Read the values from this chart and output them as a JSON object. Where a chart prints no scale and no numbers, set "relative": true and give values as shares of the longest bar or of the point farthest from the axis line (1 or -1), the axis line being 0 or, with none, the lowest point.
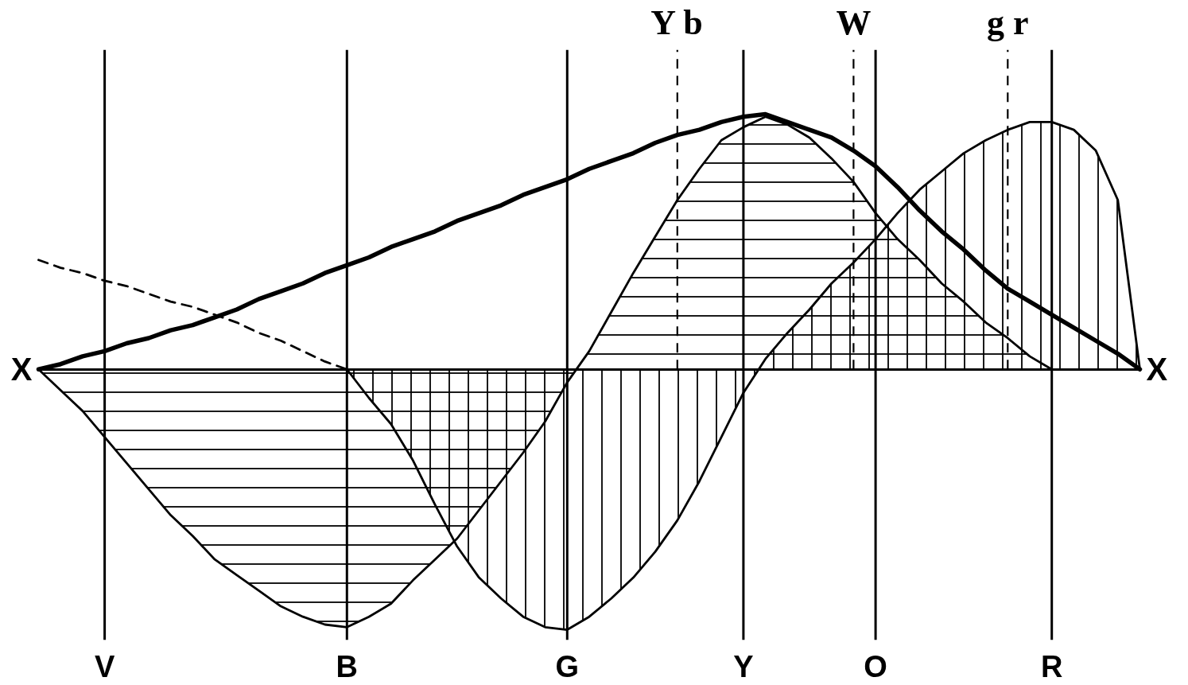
{
  "chart_data": {
    "type": "line",
    "relative": true,
    "categories": [
      null,
      null,
      null,
      "V",
      null,
      null,
      null,
      null,
      null,
      null,
      null,
      null,
      null,
      null,
      "B",
      null,
      null,
      null,
      null,
      null,
      null,
      null,
      null,
      null,
      "G",
      null,
      null,
      null,
      null,
      "Y b",
      null,
      null,
      "Y",
      null,
      null,
      null,
      null,
      "W",
      "O",
      null,
      null,
      null,
      null,
      null,
      "g r",
      null,
      "R",
      null,
      null,
      null,
      null
    ],
    "series": [
      {
        "color": "#000000",
        "values": [
          0,
          0.02,
          0.05,
          0.07,
          0.1,
          0.12,
          0.15,
          0.17,
          0.2,
          0.23,
          0.27,
          0.3,
          0.33,
          0.37,
          0.4,
          0.43,
          0.47,
          0.5,
          0.53,
          0.57,
          0.6,
          0.63,
          0.67,
          0.7,
          0.73,
          0.77,
          0.8,
          0.83,
          0.87,
          0.9,
          0.92,
          0.95,
          0.97,
          0.98,
          0.95,
          0.92,
          0.89,
          0.84,
          0.78,
          0.7,
          0.61,
          0.53,
          0.46,
          0.38,
          0.31,
          0.26,
          0.21,
          0.16,
          0.11,
          0.06,
          0
        ]
      },
      {
        "color": "#000000",
        "line_style": "dashed",
        "values": [
          0.42,
          0.39,
          0.37,
          0.34,
          0.32,
          0.29,
          0.26,
          0.24,
          0.21,
          0.18,
          0.14,
          0.11,
          0.07,
          0.03,
          0,
          null,
          null,
          null,
          null,
          null,
          null,
          null,
          null,
          null,
          null,
          null,
          null,
          null,
          null,
          null,
          null,
          null,
          null,
          null,
          null,
          null,
          null,
          null,
          null,
          null,
          null,
          null,
          null,
          null,
          null,
          null,
          null,
          null,
          null,
          null,
          null
        ]
      },
      {
        "type": "area",
        "color": "#000000",
        "values": [
          0,
          -0.08,
          -0.16,
          -0.26,
          -0.36,
          -0.46,
          -0.56,
          -0.64,
          -0.73,
          -0.79,
          -0.85,
          -0.91,
          -0.95,
          -0.98,
          -0.99,
          -0.95,
          -0.9,
          -0.81,
          -0.73,
          -0.65,
          -0.54,
          -0.43,
          -0.32,
          -0.2,
          -0.05,
          0.07,
          0.22,
          0.37,
          0.51,
          0.65,
          0.77,
          0.88,
          0.93,
          0.97,
          0.94,
          0.89,
          0.81,
          0.72,
          0.6,
          0.5,
          0.42,
          0.33,
          0.26,
          0.18,
          0.12,
          0.05,
          0,
          null,
          null,
          null,
          null
        ]
      },
      {
        "type": "area",
        "color": "#000000",
        "values": [
          null,
          null,
          null,
          null,
          null,
          null,
          null,
          null,
          null,
          null,
          null,
          null,
          null,
          null,
          0,
          -0.11,
          -0.21,
          -0.35,
          -0.52,
          -0.68,
          -0.8,
          -0.88,
          -0.95,
          -0.99,
          -1.0,
          -0.95,
          -0.88,
          -0.8,
          -0.7,
          -0.58,
          -0.43,
          -0.26,
          -0.09,
          0.04,
          0.14,
          0.23,
          0.33,
          0.41,
          0.5,
          0.6,
          0.69,
          0.76,
          0.83,
          0.88,
          0.92,
          0.95,
          0.95,
          0.92,
          0.84,
          0.65,
          0
        ]
      }
    ],
    "ref_lines": [
      {
        "axis": "x",
        "value": "V",
        "color": "#000000"
      },
      {
        "axis": "x",
        "value": "B",
        "color": "#000000"
      },
      {
        "axis": "x",
        "value": "G",
        "color": "#000000"
      },
      {
        "axis": "x",
        "value": "Y",
        "color": "#000000"
      },
      {
        "axis": "x",
        "value": "O",
        "color": "#000000"
      },
      {
        "axis": "x",
        "value": "R",
        "color": "#000000"
      },
      {
        "axis": "x",
        "value": "Y b",
        "color": "#000000",
        "line_style": "dashed"
      },
      {
        "axis": "x",
        "value": "W",
        "color": "#000000",
        "line_style": "dashed"
      },
      {
        "axis": "x",
        "value": "g r",
        "color": "#000000",
        "line_style": "dashed"
      }
    ],
    "annotations": [
      "X",
      "X"
    ]
  }
}
